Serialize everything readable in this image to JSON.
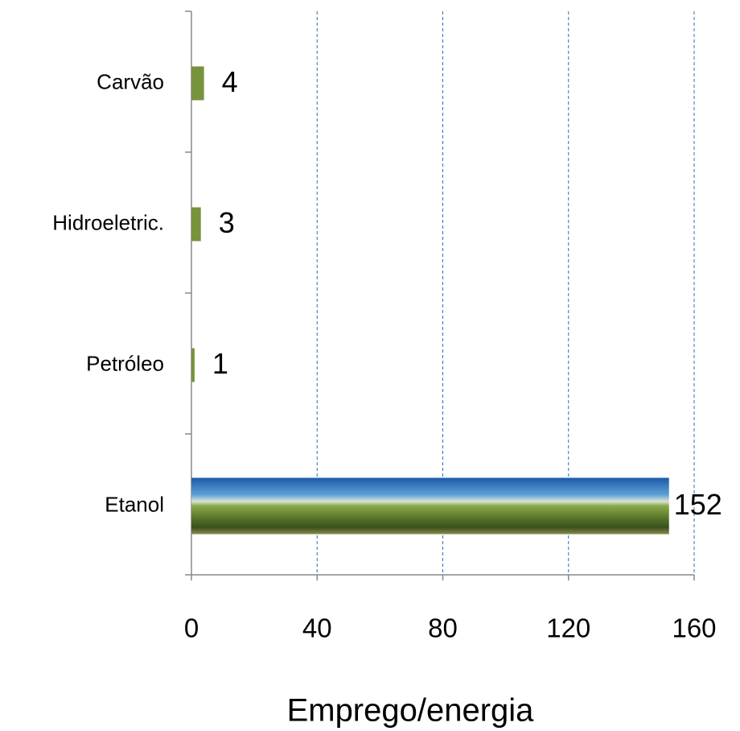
{
  "chart_data": {
    "type": "barh",
    "categories": [
      "Carvão",
      "Hidroeletric.",
      "Petróleo",
      "Etanol"
    ],
    "values": [
      4,
      3,
      1,
      152
    ],
    "color": "#77933c",
    "xlim": [
      0,
      160
    ],
    "xticks": [
      0,
      40,
      80,
      120,
      160
    ],
    "xlabel": "Emprego/energia",
    "grid": true
  }
}
